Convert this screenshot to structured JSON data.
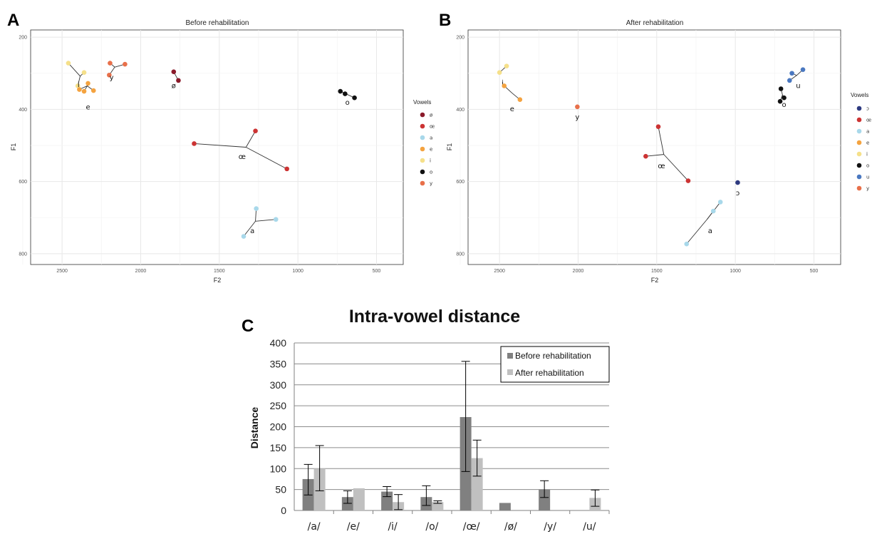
{
  "panel_labels": {
    "a": "A",
    "b": "B",
    "c": "C"
  },
  "colors": {
    "ø": "#8b1a2a",
    "œ": "#cc3333",
    "a": "#a8d8ea",
    "e": "#f4a340",
    "i": "#f5e08a",
    "o": "#111111",
    "u": "#4a78c0",
    "ɔ": "#2e3a80",
    "y": "#e8704a",
    "before_bar": "#808080",
    "after_bar": "#c0c0c0"
  },
  "chart_data": [
    {
      "type": "scatter",
      "title": "Before rehabilitation",
      "xlabel": "F2",
      "ylabel": "F1",
      "xlim": [
        2700,
        330
      ],
      "ylim": [
        830,
        180
      ],
      "xticks": [
        2500,
        2000,
        1500,
        1000,
        500
      ],
      "yticks": [
        200,
        400,
        600,
        800
      ],
      "grid": true,
      "legend_title": "Vowels",
      "legend": [
        "ø",
        "œ",
        "a",
        "e",
        "i",
        "o",
        "y"
      ],
      "vowels": [
        {
          "vowel": "i",
          "label": "i",
          "centroid": [
            2385,
            308
          ],
          "label_pos": [
            2395,
            330
          ],
          "points": [
            [
              2460,
              272
            ],
            [
              2360,
              298
            ],
            [
              2400,
              335
            ]
          ]
        },
        {
          "vowel": "e",
          "label": "e",
          "centroid": [
            2340,
            335
          ],
          "label_pos": [
            2335,
            392
          ],
          "points": [
            [
              2390,
              345
            ],
            [
              2335,
              328
            ],
            [
              2300,
              348
            ],
            [
              2360,
              350
            ]
          ]
        },
        {
          "vowel": "y",
          "label": "y",
          "centroid": [
            2165,
            283
          ],
          "label_pos": [
            2185,
            310
          ],
          "points": [
            [
              2195,
              272
            ],
            [
              2100,
              275
            ],
            [
              2200,
              305
            ]
          ]
        },
        {
          "vowel": "ø",
          "label": "ø",
          "centroid": [
            1775,
            308
          ],
          "label_pos": [
            1790,
            333
          ],
          "points": [
            [
              1790,
              296
            ],
            [
              1760,
              320
            ]
          ]
        },
        {
          "vowel": "o",
          "label": "o",
          "centroid": [
            690,
            358
          ],
          "label_pos": [
            685,
            380
          ],
          "points": [
            [
              730,
              350
            ],
            [
              700,
              357
            ],
            [
              640,
              368
            ]
          ]
        },
        {
          "vowel": "œ",
          "label": "œ",
          "centroid": [
            1330,
            505
          ],
          "label_pos": [
            1355,
            530
          ],
          "points": [
            [
              1660,
              495
            ],
            [
              1270,
              460
            ],
            [
              1070,
              565
            ]
          ]
        },
        {
          "vowel": "a",
          "label": "a",
          "centroid": [
            1270,
            710
          ],
          "label_pos": [
            1290,
            735
          ],
          "points": [
            [
              1265,
              675
            ],
            [
              1140,
              705
            ],
            [
              1345,
              752
            ]
          ]
        }
      ]
    },
    {
      "type": "scatter",
      "title": "After rehabilitation",
      "xlabel": "F2",
      "ylabel": "F1",
      "xlim": [
        2700,
        330
      ],
      "ylim": [
        830,
        180
      ],
      "xticks": [
        2500,
        2000,
        1500,
        1000,
        500
      ],
      "yticks": [
        200,
        400,
        600,
        800
      ],
      "grid": true,
      "legend_title": "Vowels",
      "legend": [
        "ɔ",
        "œ",
        "a",
        "e",
        "i",
        "o",
        "u",
        "y"
      ],
      "vowels": [
        {
          "vowel": "i",
          "label": "i",
          "centroid": [
            2480,
            290
          ],
          "label_pos": [
            2480,
            325
          ],
          "points": [
            [
              2500,
              298
            ],
            [
              2455,
              280
            ]
          ]
        },
        {
          "vowel": "e",
          "label": "e",
          "centroid": [
            2420,
            355
          ],
          "label_pos": [
            2420,
            397
          ],
          "points": [
            [
              2470,
              335
            ],
            [
              2370,
              373
            ]
          ]
        },
        {
          "vowel": "y",
          "label": "y",
          "centroid": [
            2005,
            393
          ],
          "label_pos": [
            2005,
            420
          ],
          "points": [
            [
              2005,
              393
            ]
          ]
        },
        {
          "vowel": "u",
          "label": "u",
          "centroid": [
            610,
            306
          ],
          "label_pos": [
            600,
            333
          ],
          "points": [
            [
              640,
              300
            ],
            [
              570,
              290
            ],
            [
              655,
              320
            ]
          ]
        },
        {
          "vowel": "o",
          "label": "o",
          "centroid": [
            700,
            360
          ],
          "label_pos": [
            690,
            385
          ],
          "points": [
            [
              710,
              343
            ],
            [
              690,
              368
            ],
            [
              715,
              378
            ]
          ]
        },
        {
          "vowel": "œ",
          "label": "œ",
          "centroid": [
            1455,
            525
          ],
          "label_pos": [
            1470,
            555
          ],
          "points": [
            [
              1490,
              448
            ],
            [
              1570,
              530
            ],
            [
              1300,
              598
            ]
          ]
        },
        {
          "vowel": "ɔ",
          "label": "ɔ",
          "centroid": [
            985,
            603
          ],
          "label_pos": [
            985,
            630
          ],
          "points": [
            [
              985,
              603
            ]
          ]
        },
        {
          "vowel": "a",
          "label": "a",
          "centroid": [
            1180,
            705
          ],
          "label_pos": [
            1160,
            735
          ],
          "points": [
            [
              1095,
              657
            ],
            [
              1140,
              682
            ],
            [
              1310,
              773
            ]
          ]
        }
      ]
    },
    {
      "type": "bar",
      "title": "Intra-vowel distance",
      "xlabel": "",
      "ylabel": "Distance",
      "ylim": [
        0,
        400
      ],
      "yticks": [
        0,
        50,
        100,
        150,
        200,
        250,
        300,
        350,
        400
      ],
      "grid": true,
      "legend_position": "top-right",
      "categories": [
        "/a/",
        "/e/",
        "/i/",
        "/o/",
        "/œ/",
        "/ø/",
        "/y/",
        "/u/"
      ],
      "series": [
        {
          "name": "Before rehabilitation",
          "values": [
            75,
            32,
            45,
            32,
            223,
            18,
            50,
            null
          ],
          "err_low": [
            37,
            17,
            33,
            12,
            93,
            null,
            31,
            null
          ],
          "err_high": [
            110,
            47,
            57,
            59,
            356,
            null,
            71,
            null
          ]
        },
        {
          "name": "After rehabilitation",
          "values": [
            100,
            53,
            20,
            20,
            125,
            null,
            null,
            30
          ],
          "err_low": [
            47,
            null,
            2,
            17,
            82,
            null,
            null,
            10
          ],
          "err_high": [
            155,
            null,
            38,
            23,
            168,
            null,
            null,
            49
          ]
        }
      ]
    }
  ]
}
